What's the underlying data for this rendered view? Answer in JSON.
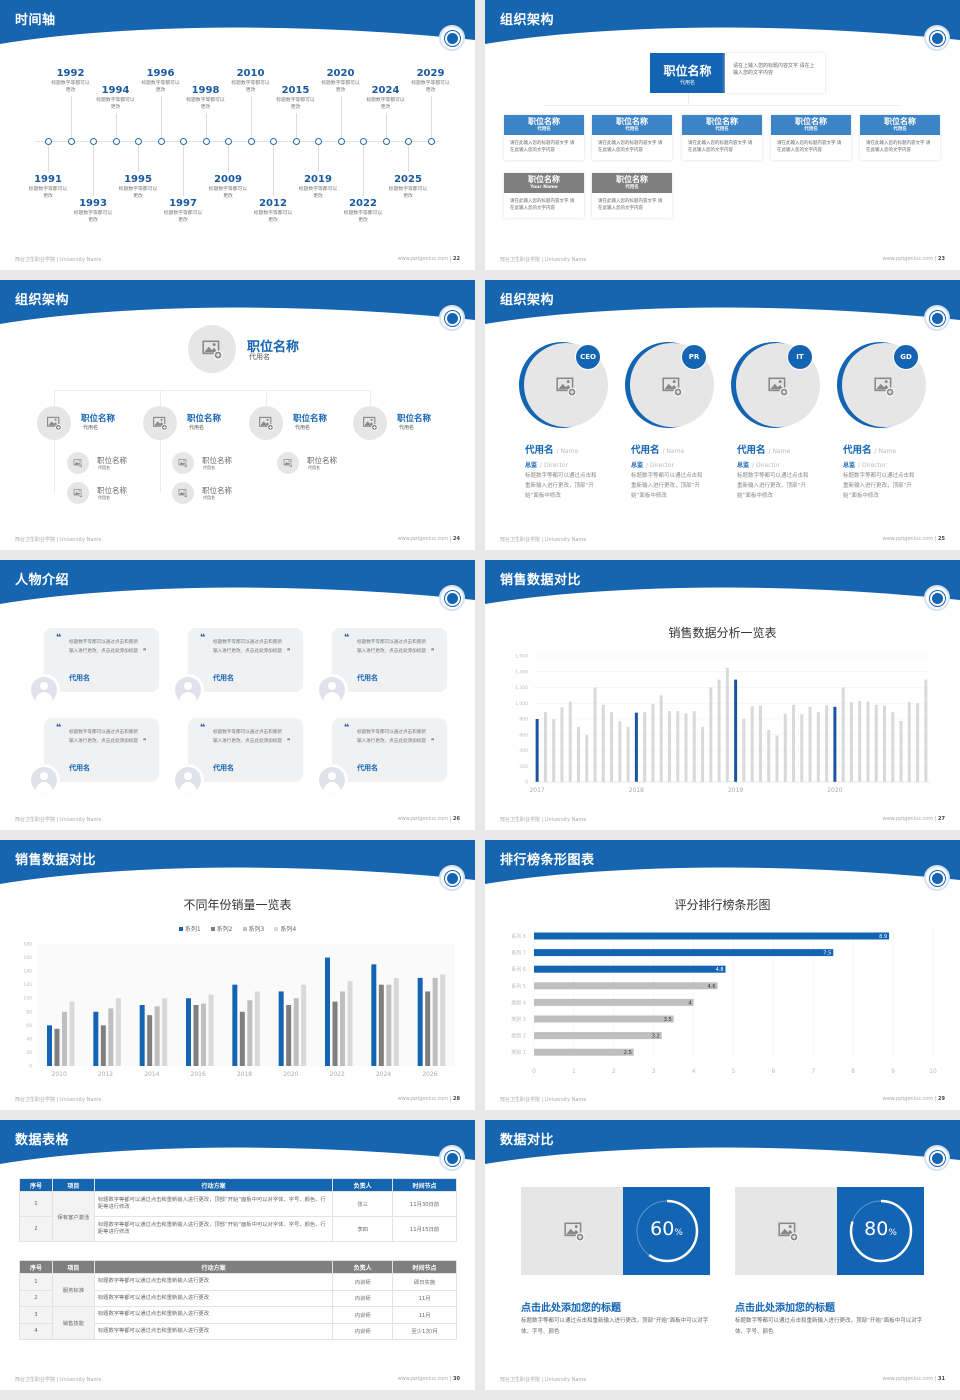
{
  "theme": {
    "blue": "#1464b4",
    "gray_dark": "#7f7f7f",
    "gray_mid": "#bfbfbf",
    "gray_light": "#d9d9d9",
    "panel": "#e6e6e6"
  },
  "footer": {
    "school": "邢台卫生职业学院 | University Name",
    "url": "www.pptgenius.com"
  },
  "slides": [
    {
      "title": "时间轴",
      "page": "22",
      "timeline": [
        {
          "year": "1991",
          "desc": "标题数字等都可以更改"
        },
        {
          "year": "1992",
          "desc": "标题数字等都可以更改"
        },
        {
          "year": "1993",
          "desc": "标题数字等都可以更改"
        },
        {
          "year": "1994",
          "desc": "标题数字等都可以更改"
        },
        {
          "year": "1995",
          "desc": "标题数字等都可以更改"
        },
        {
          "year": "1996",
          "desc": "标题数字等都可以更改"
        },
        {
          "year": "1997",
          "desc": "标题数字等都可以更改"
        },
        {
          "year": "1998",
          "desc": "标题数字等都可以更改"
        },
        {
          "year": "2009",
          "desc": "标题数字等都可以更改"
        },
        {
          "year": "2010",
          "desc": "标题数字等都可以更改"
        },
        {
          "year": "2012",
          "desc": "标题数字等都可以更改"
        },
        {
          "year": "2015",
          "desc": "标题数字等都可以更改"
        },
        {
          "year": "2019",
          "desc": "标题数字等都可以更改"
        },
        {
          "year": "2020",
          "desc": "标题数字等都可以更改"
        },
        {
          "year": "2022",
          "desc": "标题数字等都可以更改"
        },
        {
          "year": "2024",
          "desc": "标题数字等都可以更改"
        },
        {
          "year": "2025",
          "desc": "标题数字等都可以更改"
        },
        {
          "year": "2029",
          "desc": "标题数字等都可以更改"
        }
      ]
    },
    {
      "title": "组织架构",
      "page": "23",
      "top": {
        "title": "职位名称",
        "sub": "代用名",
        "desc": "请在上输入您的标题内容文字 请在上输入您的文字内容"
      },
      "boxes": [
        {
          "title": "职位名称",
          "sub": "代用名",
          "desc": "请在此输入您的标题内容文字 请在此输入您的文字内容",
          "style": "blue"
        },
        {
          "title": "职位名称",
          "sub": "代用名",
          "desc": "请在此输入您的标题内容文字 请在此输入您的文字内容",
          "style": "blue"
        },
        {
          "title": "职位名称",
          "sub": "代用名",
          "desc": "请在此输入您的标题内容文字 请在此输入您的文字内容",
          "style": "blue"
        },
        {
          "title": "职位名称",
          "sub": "代用名",
          "desc": "请在此输入您的标题内容文字 请在此输入您的文字内容",
          "style": "blue"
        },
        {
          "title": "职位名称",
          "sub": "代用名",
          "desc": "请在此输入您的标题内容文字 请在此输入您的文字内容",
          "style": "blue"
        },
        {
          "title": "职位名称",
          "sub": "Your Name",
          "desc": "请在此输入您的标题内容文字 请在此输入您的文字内容",
          "style": "gray"
        },
        {
          "title": "职位名称",
          "sub": "代用名",
          "desc": "请在此输入您的标题内容文字 请在此输入您的文字内容",
          "style": "gray"
        }
      ]
    },
    {
      "title": "组织架构",
      "page": "24",
      "top": {
        "title": "职位名称",
        "sub": "代用名"
      },
      "mid": [
        {
          "title": "职位名称",
          "sub": "代用名"
        },
        {
          "title": "职位名称",
          "sub": "代用名"
        },
        {
          "title": "职位名称",
          "sub": "代用名"
        },
        {
          "title": "职位名称",
          "sub": "代用名"
        }
      ],
      "subs": [
        {
          "title": "职位名称",
          "sub": "代用名",
          "col": 0
        },
        {
          "title": "职位名称",
          "sub": "代用名",
          "col": 0
        },
        {
          "title": "职位名称",
          "sub": "代用名",
          "col": 1
        },
        {
          "title": "职位名称",
          "sub": "代用名",
          "col": 1
        },
        {
          "title": "职位名称",
          "sub": "代用名",
          "col": 2
        }
      ]
    },
    {
      "title": "组织架构",
      "page": "25",
      "people": [
        {
          "badge": "CEO",
          "name": "代用名",
          "name_en": "/ Name",
          "role": "总监",
          "role_en": "/ Director",
          "desc": "标题数字等都可以通过点击和重新输入进行更改，顶部“开始”面板中修改"
        },
        {
          "badge": "PR",
          "name": "代用名",
          "name_en": "/ Name",
          "role": "总监",
          "role_en": "/ Director",
          "desc": "标题数字等都可以通过点击和重新输入进行更改，顶部“开始”面板中修改"
        },
        {
          "badge": "IT",
          "name": "代用名",
          "name_en": "/ Name",
          "role": "总监",
          "role_en": "/ Director",
          "desc": "标题数字等都可以通过点击和重新输入进行更改，顶部“开始”面板中修改"
        },
        {
          "badge": "GD",
          "name": "代用名",
          "name_en": "/ Name",
          "role": "总监",
          "role_en": "/ Director",
          "desc": "标题数字等都可以通过点击和重新输入进行更改，顶部“开始”面板中修改"
        }
      ]
    },
    {
      "title": "人物介绍",
      "page": "26",
      "cards": [
        {
          "quote": "标题数字等都可以通过点击和重新输入进行更改，点击此处添加标题",
          "name": "代用名"
        },
        {
          "quote": "标题数字等都可以通过点击和重新输入进行更改，点击此处添加标题",
          "name": "代用名"
        },
        {
          "quote": "标题数字等都可以通过点击和重新输入进行更改，点击此处添加标题",
          "name": "代用名"
        },
        {
          "quote": "标题数字等都可以通过点击和重新输入进行更改，点击此处添加标题",
          "name": "代用名"
        },
        {
          "quote": "标题数字等都可以通过点击和重新输入进行更改，点击此处添加标题",
          "name": "代用名"
        },
        {
          "quote": "标题数字等都可以通过点击和重新输入进行更改，点击此处添加标题",
          "name": "代用名"
        }
      ]
    },
    {
      "title": "销售数据对比",
      "page": "27"
    },
    {
      "title": "销售数据对比",
      "page": "28"
    },
    {
      "title": "排行榜条形图表",
      "page": "29"
    },
    {
      "title": "数据表格",
      "page": "30",
      "table1": {
        "headers": [
          "序号",
          "项目",
          "行动方案",
          "负责人",
          "时间节点"
        ],
        "group": "保有客户激活",
        "rows": [
          [
            "1",
            "标题数字等都可以通过点击和重新输入进行更改，顶部“开始”面板中可以对字体、字号、颜色、行距等进行修改",
            "张三",
            "11月30日前"
          ],
          [
            "2",
            "标题数字等都可以通过点击和重新输入进行更改，顶部“开始”面板中可以对字体、字号、颜色、行距等进行修改",
            "李四",
            "11月15日前"
          ]
        ]
      },
      "table2": {
        "headers": [
          "序号",
          "项目",
          "行动方案",
          "负责人",
          "时间节点"
        ],
        "groups": [
          "服务标准",
          "销售技能"
        ],
        "rows": [
          [
            "1",
            "标题数字等都可以通过点击和重新输入进行更改",
            "内训师",
            "即日实施"
          ],
          [
            "2",
            "标题数字等都可以通过点击和重新输入进行更改",
            "内训师",
            "11月"
          ],
          [
            "3",
            "标题数字等都可以通过点击和重新输入进行更改",
            "内训师",
            "11月"
          ],
          [
            "4",
            "标题数字等都可以通过点击和重新输入进行更改",
            "内训师",
            "至少1次/月"
          ]
        ]
      }
    },
    {
      "title": "数据对比",
      "page": "31",
      "items": [
        {
          "percent": 60,
          "value": "60",
          "unit": "%",
          "title": "点击此处添加您的标题",
          "desc": "标题数字等都可以通过点击和重新输入进行更改，顶部“开始”面板中可以对字体、字号、颜色"
        },
        {
          "percent": 80,
          "value": "80",
          "unit": "%",
          "title": "点击此处添加您的标题",
          "desc": "标题数字等都可以通过点击和重新输入进行更改，顶部“开始”面板中可以对字体、字号、颜色"
        }
      ]
    }
  ],
  "chart_data": [
    {
      "type": "bar",
      "title": "销售数据分析一览表",
      "ylim": [
        0,
        1600
      ],
      "yticks": [
        "0",
        "200",
        "400",
        "600",
        "800",
        "1,000",
        "1,200",
        "1,400",
        "1,600"
      ],
      "xlabels": [
        "2017",
        "2018",
        "2019",
        "2020"
      ],
      "highlight_every": 12,
      "grid": true,
      "values": [
        800,
        890,
        800,
        950,
        1020,
        700,
        600,
        1200,
        980,
        890,
        770,
        700,
        880,
        890,
        990,
        1100,
        900,
        900,
        870,
        900,
        700,
        1200,
        1300,
        1450,
        1300,
        800,
        960,
        970,
        660,
        590,
        870,
        980,
        860,
        955,
        890,
        975,
        955,
        1200,
        1015,
        1027,
        1020,
        980,
        970,
        890,
        775,
        1015,
        1000,
        1300
      ]
    },
    {
      "type": "bar",
      "title": "不同年份销量一览表",
      "ylim": [
        0,
        180
      ],
      "yticks": [
        "0",
        "20",
        "40",
        "60",
        "80",
        "100",
        "120",
        "140",
        "160",
        "180"
      ],
      "categories": [
        "2010",
        "2012",
        "2014",
        "2016",
        "2018",
        "2020",
        "2022",
        "2024",
        "2026"
      ],
      "legend": "top",
      "grid": true,
      "series": [
        {
          "name": "系列1",
          "color": "#1464b4",
          "values": [
            60,
            80,
            90,
            100,
            120,
            110,
            160,
            150,
            130
          ]
        },
        {
          "name": "系列2",
          "color": "#7f7f7f",
          "values": [
            55,
            60,
            75,
            90,
            80,
            90,
            95,
            120,
            110
          ]
        },
        {
          "name": "系列3",
          "color": "#bfbfbf",
          "values": [
            80,
            85,
            88,
            92,
            97,
            100,
            110,
            120,
            130
          ]
        },
        {
          "name": "系列4",
          "color": "#d9d9d9",
          "values": [
            95,
            100,
            100,
            105,
            110,
            120,
            125,
            130,
            135
          ]
        }
      ]
    },
    {
      "type": "bar",
      "orientation": "horizontal",
      "title": "评分排行榜条形图",
      "xlim": [
        0,
        10
      ],
      "xticks": [
        "0",
        "1",
        "2",
        "3",
        "4",
        "5",
        "6",
        "7",
        "8",
        "9",
        "10"
      ],
      "categories": [
        "系列 8",
        "系列 7",
        "系列 6",
        "系列 5",
        "类别 4",
        "类别 3",
        "类别 2",
        "类别 1"
      ],
      "values": [
        8.9,
        7.5,
        4.8,
        4.6,
        4,
        3.5,
        3.2,
        2.5
      ],
      "labels": [
        "8.9",
        "7.5",
        "4.8",
        "4.6",
        "4",
        "3.5",
        "3.2",
        "2.5"
      ],
      "highlighted": [
        true,
        true,
        true,
        false,
        false,
        false,
        false,
        false
      ]
    }
  ]
}
